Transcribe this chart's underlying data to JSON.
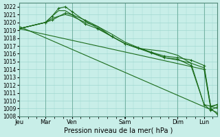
{
  "title": "",
  "xlabel": "Pression niveau de la mer( hPa )",
  "ylabel": "",
  "background_color": "#c8eee8",
  "grid_color": "#a0d8d0",
  "line_color": "#1a6b1a",
  "ylim": [
    1008,
    1022.5
  ],
  "yticks": [
    1008,
    1009,
    1010,
    1011,
    1012,
    1013,
    1014,
    1015,
    1016,
    1017,
    1018,
    1019,
    1020,
    1021,
    1022
  ],
  "day_labels": [
    "Jeu",
    "Mar",
    "Ven",
    "Sam",
    "Dim",
    "Lun"
  ],
  "day_positions_norm": [
    0.0,
    0.148,
    0.296,
    0.593,
    0.889,
    1.037
  ],
  "xlim": [
    0,
    1.11
  ],
  "series": [
    {
      "x": [
        0.0,
        0.148,
        0.185,
        0.222,
        0.259,
        0.296,
        0.37,
        0.44,
        0.52,
        0.593,
        0.667,
        0.74,
        0.815,
        0.889,
        0.963,
        1.037,
        1.074,
        1.11
      ],
      "y": [
        1019.2,
        1020.0,
        1020.8,
        1021.5,
        1021.5,
        1021.0,
        1020.3,
        1019.5,
        1018.5,
        1017.5,
        1016.8,
        1016.2,
        1015.5,
        1015.2,
        1014.8,
        1014.2,
        1009.3,
        1009.5
      ],
      "marker": false
    },
    {
      "x": [
        0.0,
        0.148,
        0.185,
        0.222,
        0.259,
        0.296,
        0.37,
        0.44,
        0.52,
        0.593,
        0.667,
        0.74,
        0.815,
        0.889,
        0.963,
        1.037,
        1.074,
        1.11
      ],
      "y": [
        1019.2,
        1020.0,
        1020.8,
        1021.8,
        1022.0,
        1021.4,
        1020.2,
        1019.3,
        1018.2,
        1017.3,
        1016.7,
        1016.1,
        1015.5,
        1015.3,
        1014.5,
        1009.5,
        1008.8,
        1009.2
      ],
      "marker": true
    },
    {
      "x": [
        0.0,
        0.148,
        0.185,
        0.222,
        0.259,
        0.296,
        0.37,
        0.44,
        0.52,
        0.593,
        0.667,
        0.74,
        0.815,
        0.889,
        0.963,
        1.037,
        1.074,
        1.11
      ],
      "y": [
        1019.2,
        1020.0,
        1020.5,
        1020.8,
        1021.0,
        1020.8,
        1020.0,
        1019.5,
        1018.2,
        1017.3,
        1016.7,
        1016.5,
        1016.3,
        1015.8,
        1014.8,
        1009.5,
        1009.3,
        1009.0
      ],
      "marker": false
    },
    {
      "x": [
        0.0,
        1.11
      ],
      "y": [
        1019.5,
        1008.5
      ],
      "marker": false
    },
    {
      "x": [
        0.0,
        0.148,
        0.185,
        0.259,
        0.296,
        0.37,
        0.44,
        0.52,
        0.593,
        0.667,
        0.74,
        0.815,
        0.889,
        0.963,
        1.037,
        1.074,
        1.11
      ],
      "y": [
        1019.2,
        1020.0,
        1020.3,
        1021.2,
        1021.0,
        1019.8,
        1019.2,
        1018.2,
        1017.3,
        1016.7,
        1016.2,
        1015.7,
        1015.5,
        1015.2,
        1014.5,
        1009.2,
        1009.5
      ],
      "marker": true
    },
    {
      "x": [
        0.0,
        1.037,
        1.074,
        1.11
      ],
      "y": [
        1019.2,
        1014.0,
        1009.0,
        1008.3
      ],
      "marker": true
    }
  ],
  "fontsize_xlabel": 7,
  "fontsize_yticks": 5.5,
  "fontsize_xticks": 6
}
